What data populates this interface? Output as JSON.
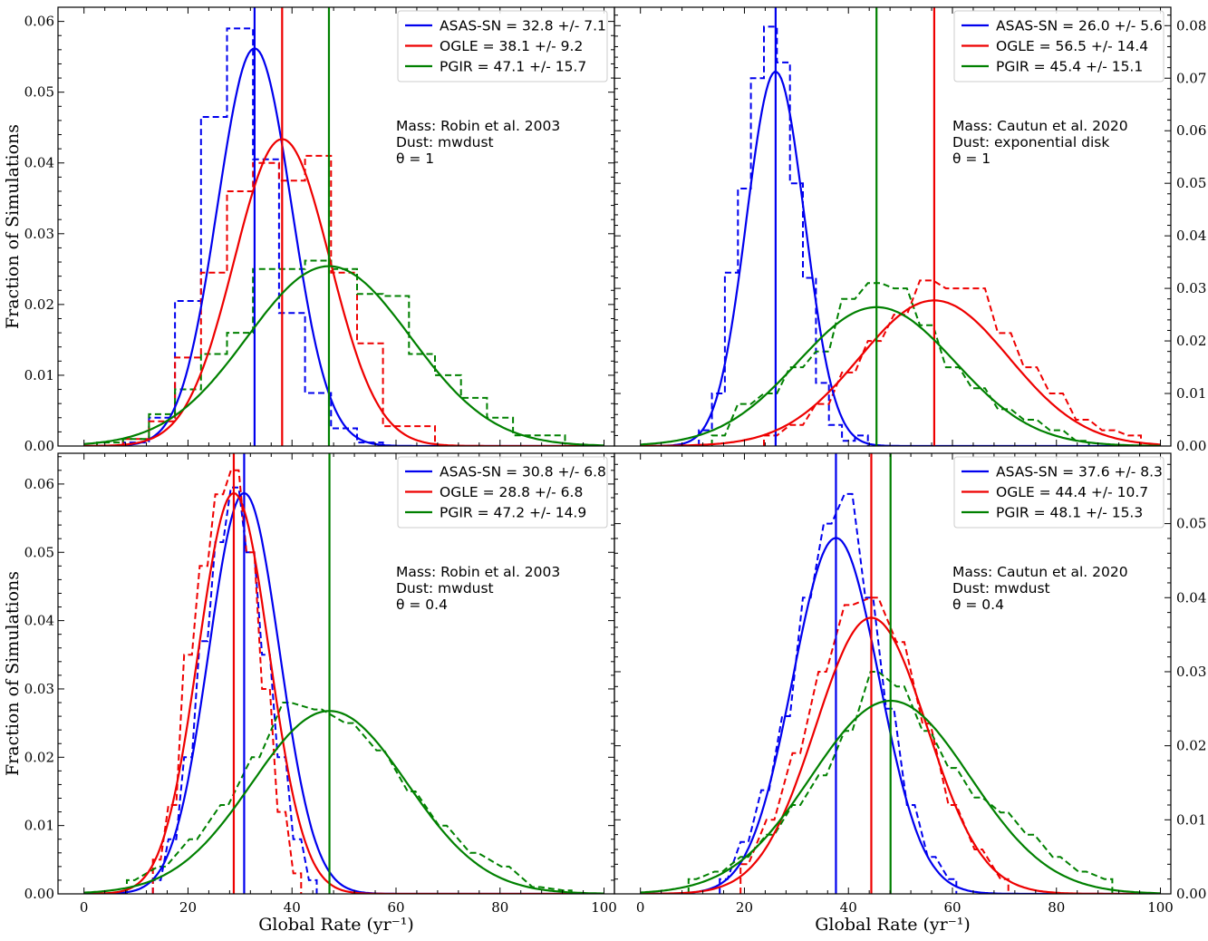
{
  "chart_data": [
    {
      "type": "histogram+gaussian",
      "panel": "top-left",
      "ylabel": "Fraction of Simulations",
      "xlabel": "",
      "xlim": [
        -5,
        102
      ],
      "ylim": [
        0,
        0.062
      ],
      "yticks": [
        "0.00",
        "0.01",
        "0.02",
        "0.03",
        "0.04",
        "0.05",
        "0.06"
      ],
      "ytick_values": [
        0,
        0.01,
        0.02,
        0.03,
        0.04,
        0.05,
        0.06
      ],
      "xticks": [],
      "annotation": [
        "Mass: Robin et al. 2003",
        "Dust: mwdust",
        "θ = 1"
      ],
      "series": [
        {
          "name": "ASAS-SN = 32.8 +/- 7.1",
          "color": "#0000ee",
          "mean": 32.8,
          "sigma": 7.1,
          "bin_width": 5,
          "hist_x": [
            10,
            15,
            20,
            25,
            30,
            35,
            40,
            45,
            50,
            55
          ],
          "hist_y": [
            0.0005,
            0.004,
            0.0205,
            0.0465,
            0.059,
            0.0405,
            0.0188,
            0.0075,
            0.0025,
            0.0005
          ]
        },
        {
          "name": "OGLE = 38.1 +/- 9.2",
          "color": "#ee0000",
          "mean": 38.1,
          "sigma": 9.2,
          "bin_width": 5,
          "hist_x": [
            10,
            15,
            20,
            25,
            30,
            35,
            40,
            45,
            50,
            55,
            60,
            65
          ],
          "hist_y": [
            0.001,
            0.0035,
            0.0125,
            0.0245,
            0.036,
            0.04,
            0.0375,
            0.041,
            0.0245,
            0.0145,
            0.0028,
            0.0028
          ]
        },
        {
          "name": "PGIR = 47.1 +/- 15.7",
          "color": "#008000",
          "mean": 47.1,
          "sigma": 15.7,
          "bin_width": 5,
          "hist_x": [
            5,
            10,
            15,
            20,
            25,
            30,
            35,
            40,
            45,
            50,
            55,
            60,
            65,
            70,
            75,
            80,
            85,
            90
          ],
          "hist_y": [
            0.0005,
            0.001,
            0.0045,
            0.008,
            0.013,
            0.016,
            0.025,
            0.025,
            0.0262,
            0.025,
            0.0215,
            0.0212,
            0.013,
            0.01,
            0.0068,
            0.004,
            0.0015,
            0.0015
          ]
        }
      ]
    },
    {
      "type": "histogram+gaussian",
      "panel": "top-right",
      "ylabel": "",
      "xlabel": "",
      "xlim": [
        -5,
        102
      ],
      "ylim": [
        0,
        0.0835
      ],
      "yticks": [
        "0.00",
        "0.01",
        "0.02",
        "0.03",
        "0.04",
        "0.05",
        "0.06",
        "0.07",
        "0.08"
      ],
      "ytick_values": [
        0,
        0.01,
        0.02,
        0.03,
        0.04,
        0.05,
        0.06,
        0.07,
        0.08
      ],
      "xticks": [],
      "annotation": [
        "Mass: Cautun et al. 2020",
        "Dust: exponential disk",
        "θ = 1"
      ],
      "series": [
        {
          "name": "ASAS-SN = 26.0 +/- 5.6",
          "color": "#0000ee",
          "mean": 26.0,
          "sigma": 5.6,
          "bin_width": 2.5,
          "hist_x": [
            12.5,
            15,
            17.5,
            20,
            22.5,
            25,
            27.5,
            30,
            32.5,
            35,
            37.5,
            40,
            42.5
          ],
          "hist_y": [
            0.003,
            0.01,
            0.033,
            0.049,
            0.07,
            0.0798,
            0.073,
            0.05,
            0.032,
            0.012,
            0.004,
            0.001,
            0.002
          ]
        },
        {
          "name": "OGLE = 56.5 +/- 14.4",
          "color": "#ee0000",
          "mean": 56.5,
          "sigma": 14.4,
          "bin_width": 2.5,
          "hist_x": [
            25,
            30,
            35,
            40,
            45,
            50,
            55,
            60,
            65,
            70,
            75,
            80,
            85,
            90,
            95
          ],
          "hist_y": [
            0.002,
            0.004,
            0.008,
            0.014,
            0.02,
            0.025,
            0.0315,
            0.03,
            0.03,
            0.0215,
            0.015,
            0.01,
            0.005,
            0.003,
            0.002
          ]
        },
        {
          "name": "PGIR = 45.4 +/- 15.1",
          "color": "#008000",
          "mean": 45.4,
          "sigma": 15.1,
          "bin_width": 2.5,
          "hist_x": [
            15,
            20,
            25,
            30,
            35,
            40,
            45,
            50,
            55,
            60,
            65,
            70,
            75,
            80,
            85
          ],
          "hist_y": [
            0.002,
            0.008,
            0.01,
            0.015,
            0.018,
            0.028,
            0.031,
            0.03,
            0.023,
            0.015,
            0.011,
            0.007,
            0.005,
            0.003,
            0.001
          ]
        }
      ]
    },
    {
      "type": "histogram+gaussian",
      "panel": "bottom-left",
      "ylabel": "Fraction of Simulations",
      "xlabel": "Global Rate (yr⁻¹)",
      "xlim": [
        -5,
        102
      ],
      "ylim": [
        0,
        0.0645
      ],
      "yticks": [
        "0.00",
        "0.01",
        "0.02",
        "0.03",
        "0.04",
        "0.05",
        "0.06"
      ],
      "ytick_values": [
        0,
        0.01,
        0.02,
        0.03,
        0.04,
        0.05,
        0.06
      ],
      "xticks": [
        "0",
        "20",
        "40",
        "60",
        "80",
        "100"
      ],
      "xtick_values": [
        0,
        20,
        40,
        60,
        80,
        100
      ],
      "annotation": [
        "Mass: Robin et al. 2003",
        "Dust: mwdust",
        "θ = 0.4"
      ],
      "series": [
        {
          "name": "ASAS-SN = 30.8 +/- 6.8",
          "color": "#0000ee",
          "mean": 30.8,
          "sigma": 6.8,
          "bin_width": 1.5,
          "hist_x": [
            14,
            17,
            20,
            23,
            26,
            29,
            32,
            35,
            38,
            41,
            44
          ],
          "hist_y": [
            0.002,
            0.008,
            0.02,
            0.037,
            0.0515,
            0.0595,
            0.05,
            0.035,
            0.02,
            0.008,
            0.002
          ]
        },
        {
          "name": "OGLE = 28.8 +/- 6.8",
          "color": "#ee0000",
          "mean": 28.8,
          "sigma": 6.8,
          "bin_width": 1.5,
          "hist_x": [
            14,
            17,
            20,
            23,
            26,
            29,
            32,
            35,
            38,
            41
          ],
          "hist_y": [
            0.005,
            0.013,
            0.035,
            0.048,
            0.0585,
            0.062,
            0.05,
            0.03,
            0.012,
            0.003
          ]
        },
        {
          "name": "PGIR = 47.2 +/- 14.9",
          "color": "#008000",
          "mean": 47.2,
          "sigma": 14.9,
          "bin_width": 1.5,
          "hist_x": [
            9,
            15,
            21,
            27,
            33,
            39,
            45,
            51,
            57,
            63,
            69,
            75,
            81,
            87,
            93
          ],
          "hist_y": [
            0.002,
            0.004,
            0.008,
            0.013,
            0.02,
            0.028,
            0.027,
            0.025,
            0.021,
            0.015,
            0.01,
            0.006,
            0.004,
            0.001,
            0.0005
          ]
        }
      ]
    },
    {
      "type": "histogram+gaussian",
      "panel": "bottom-right",
      "ylabel": "",
      "xlabel": "Global Rate (yr⁻¹)",
      "xlim": [
        -5,
        102
      ],
      "ylim": [
        0,
        0.0595
      ],
      "yticks": [
        "0.00",
        "0.01",
        "0.02",
        "0.03",
        "0.04",
        "0.05"
      ],
      "ytick_values": [
        0,
        0.01,
        0.02,
        0.03,
        0.04,
        0.05
      ],
      "xticks": [
        "0",
        "20",
        "40",
        "60",
        "80",
        "100"
      ],
      "xtick_values": [
        0,
        20,
        40,
        60,
        80,
        100
      ],
      "annotation": [
        "Mass: Cautun et al. 2020",
        "Dust: mwdust",
        "θ = 0.4"
      ],
      "series": [
        {
          "name": "ASAS-SN = 37.6 +/- 8.3",
          "color": "#0000ee",
          "mean": 37.6,
          "sigma": 8.3,
          "bin_width": 1.5,
          "hist_x": [
            16,
            20,
            24,
            28,
            32,
            36,
            40,
            44,
            48,
            52,
            56,
            60
          ],
          "hist_y": [
            0.002,
            0.007,
            0.014,
            0.024,
            0.04,
            0.05,
            0.054,
            0.04,
            0.025,
            0.012,
            0.005,
            0.002
          ]
        },
        {
          "name": "OGLE = 44.4 +/- 10.7",
          "color": "#ee0000",
          "mean": 44.4,
          "sigma": 10.7,
          "bin_width": 1.5,
          "hist_x": [
            20,
            25,
            30,
            35,
            40,
            45,
            50,
            55,
            60,
            65,
            70
          ],
          "hist_y": [
            0.004,
            0.01,
            0.019,
            0.03,
            0.039,
            0.04,
            0.034,
            0.023,
            0.012,
            0.006,
            0.002
          ]
        },
        {
          "name": "PGIR = 48.1 +/- 15.3",
          "color": "#008000",
          "mean": 48.1,
          "sigma": 15.3,
          "bin_width": 1.5,
          "hist_x": [
            10,
            15,
            20,
            25,
            30,
            35,
            40,
            45,
            50,
            55,
            60,
            65,
            70,
            75,
            80,
            85,
            90
          ],
          "hist_y": [
            0.002,
            0.003,
            0.005,
            0.008,
            0.012,
            0.016,
            0.022,
            0.03,
            0.028,
            0.022,
            0.017,
            0.013,
            0.011,
            0.008,
            0.005,
            0.003,
            0.002
          ]
        }
      ]
    }
  ]
}
